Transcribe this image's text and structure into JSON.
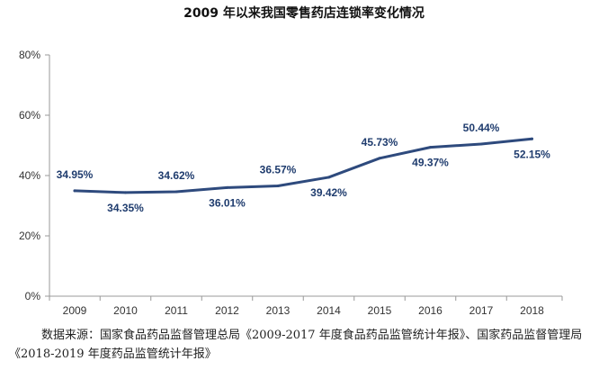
{
  "chart_data": {
    "type": "line",
    "title": "2009 年以来我国零售药店连锁率变化情况",
    "x": [
      "2009",
      "2010",
      "2011",
      "2012",
      "2013",
      "2014",
      "2015",
      "2016",
      "2017",
      "2018"
    ],
    "series": [
      {
        "values": [
          34.95,
          34.35,
          34.62,
          36.01,
          36.57,
          39.42,
          45.73,
          49.37,
          50.44,
          52.15
        ],
        "labels": [
          "34.95%",
          "34.35%",
          "34.62%",
          "36.01%",
          "36.57%",
          "39.42%",
          "45.73%",
          "49.37%",
          "50.44%",
          "52.15%"
        ],
        "label_positions": [
          "above",
          "below",
          "above",
          "below",
          "above",
          "below",
          "above",
          "below",
          "above",
          "below"
        ]
      }
    ],
    "ylim": [
      0,
      80
    ],
    "yticks": [
      0,
      20,
      40,
      60,
      80
    ],
    "ytick_labels": [
      "0%",
      "20%",
      "40%",
      "60%",
      "80%"
    ],
    "grid": false,
    "legend": "none",
    "colors": {
      "line": "#2E4A7D",
      "labels": "#1F3C6E",
      "axis": "#999999"
    }
  },
  "source_note": "数据来源：国家食品药品监督管理总局《2009-2017 年度食品药品监管统计年报》、国家药品监督管理局《2018-2019 年度药品监管统计年报》"
}
